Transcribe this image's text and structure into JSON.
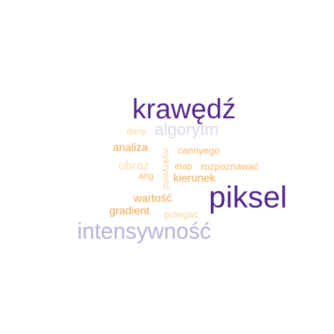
{
  "words": {
    "krawedz": "krawędź",
    "algorytm": "algorytm",
    "dany": "dany",
    "analiza": "analiza",
    "cannyego": "cannyego",
    "obraz": "obraz",
    "etap": "etap",
    "rozpoznawac": "rozpoznawać",
    "ang": "ang",
    "kierunek": "kierunek",
    "wartosc": "wartość",
    "piksel": "piksel",
    "gradient": "gradient",
    "polegac": "polegać",
    "intensywnosc": "intensywność",
    "wykrywac": "wykrywać"
  },
  "colors": {
    "dark_purple": "#54278f",
    "light_purple": "#b5b4d9",
    "pale_purple": "#dadaeb",
    "orange": "#f4a64a",
    "light_orange": "#fdb863",
    "pale_orange": "#fdd49e"
  }
}
